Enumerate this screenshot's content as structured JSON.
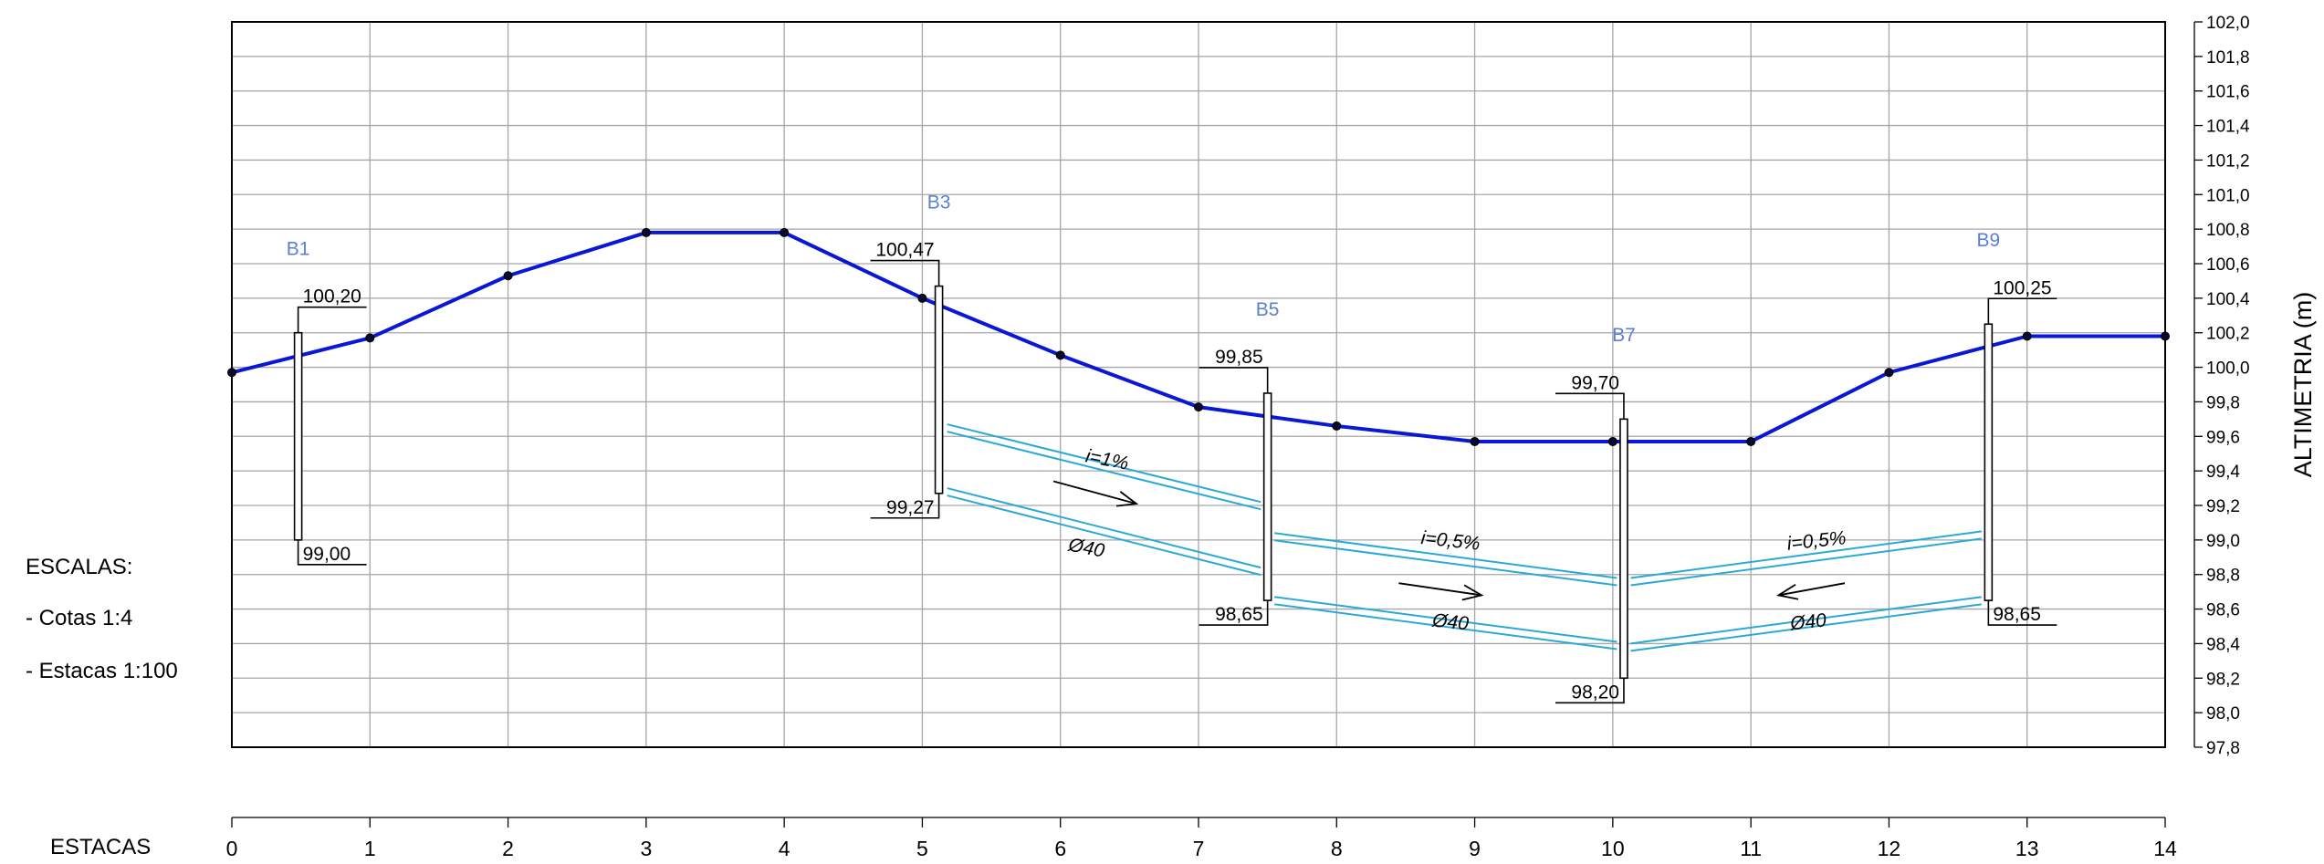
{
  "side_notes": {
    "title": "ESCALAS:",
    "cotas": "- Cotas 1:4",
    "estacas": "- Estacas 1:100",
    "x_axis_label": "ESTACAS"
  },
  "chart_data": {
    "type": "line",
    "title": "",
    "xlabel": "ESTACAS",
    "ylabel": "ALTIMETRIA (m)",
    "xlim": [
      0,
      14
    ],
    "ylim": [
      97.8,
      102.0
    ],
    "grid": true,
    "x_ticks": [
      "0",
      "1",
      "2",
      "3",
      "4",
      "5",
      "6",
      "7",
      "8",
      "9",
      "10",
      "11",
      "12",
      "13",
      "14"
    ],
    "y_ticks": [
      "97,8",
      "98,0",
      "98,2",
      "98,4",
      "98,6",
      "98,8",
      "99,0",
      "99,2",
      "99,4",
      "99,6",
      "99,8",
      "100,0",
      "100,2",
      "100,4",
      "100,6",
      "100,8",
      "101,0",
      "101,2",
      "101,4",
      "101,6",
      "101,8",
      "102,0"
    ],
    "series": [
      {
        "role": "terrain",
        "color": "#0b17d6",
        "x": [
          0,
          1,
          2,
          3,
          4,
          5,
          6,
          7,
          8,
          9,
          10,
          11,
          12,
          13,
          14
        ],
        "y": [
          99.97,
          100.17,
          100.53,
          100.78,
          100.78,
          100.4,
          100.07,
          99.77,
          99.66,
          99.57,
          99.57,
          99.57,
          99.97,
          100.18,
          100.18
        ]
      }
    ],
    "manholes": [
      {
        "label": "B1",
        "x": 0.48,
        "top": 100.2,
        "bottom": 99.0,
        "top_label": "100,20",
        "bottom_label": "99,00",
        "side": "right",
        "name_y": 100.65
      },
      {
        "label": "B3",
        "x": 5.12,
        "top": 100.47,
        "bottom": 99.27,
        "top_label": "100,47",
        "bottom_label": "99,27",
        "side": "left",
        "name_y": 100.92
      },
      {
        "label": "B5",
        "x": 7.5,
        "top": 99.85,
        "bottom": 98.65,
        "top_label": "99,85",
        "bottom_label": "98,65",
        "side": "left",
        "name_y": 100.3
      },
      {
        "label": "B7",
        "x": 10.08,
        "top": 99.7,
        "bottom": 98.2,
        "top_label": "99,70",
        "bottom_label": "98,20",
        "side": "left",
        "name_y": 100.15
      },
      {
        "label": "B9",
        "x": 12.72,
        "top": 100.25,
        "bottom": 98.65,
        "top_label": "100,25",
        "bottom_label": "98,65",
        "side": "right",
        "name_y": 100.7
      }
    ],
    "pipe_color": "#29a9d6",
    "pipes": [
      {
        "x1": 5.18,
        "x2": 7.45,
        "top": [
          99.67,
          99.22
        ],
        "bottom": [
          99.3,
          98.84
        ]
      },
      {
        "x1": 7.55,
        "x2": 10.03,
        "top": [
          99.04,
          98.78
        ],
        "bottom": [
          98.67,
          98.41
        ]
      },
      {
        "x1": 10.13,
        "x2": 12.67,
        "top": [
          98.78,
          99.05
        ],
        "bottom": [
          98.4,
          98.67
        ]
      }
    ],
    "annotations": [
      {
        "text": "i=1%",
        "x": 6.33,
        "y": 99.43,
        "angle": 11
      },
      {
        "text": "Ø40",
        "x": 6.18,
        "y": 98.92,
        "angle": 11
      },
      {
        "text": "i=0,5%",
        "x": 8.82,
        "y": 98.96,
        "angle": 6
      },
      {
        "text": "Ø40",
        "x": 8.82,
        "y": 98.49,
        "angle": 6
      },
      {
        "text": "i=0,5%",
        "x": 11.48,
        "y": 98.96,
        "angle": -6
      },
      {
        "text": "Ø40",
        "x": 11.42,
        "y": 98.49,
        "angle": -6
      }
    ],
    "flow_arrows": [
      {
        "x1": 5.95,
        "y1": 99.34,
        "x2": 6.55,
        "y2": 99.21
      },
      {
        "x1": 8.45,
        "y1": 98.75,
        "x2": 9.05,
        "y2": 98.68
      },
      {
        "x1": 11.68,
        "y1": 98.75,
        "x2": 11.2,
        "y2": 98.68
      }
    ]
  }
}
